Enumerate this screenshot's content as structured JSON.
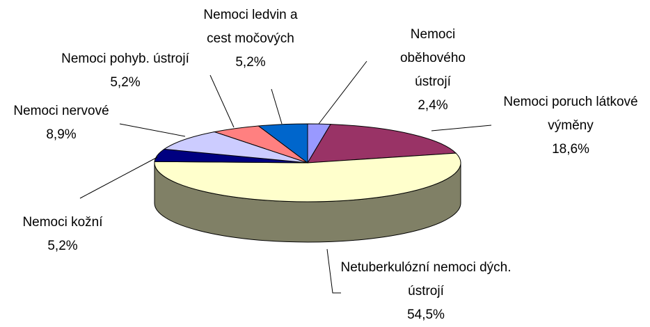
{
  "chart_data": {
    "type": "pie",
    "categories": [
      "Nemoci oběhového ústrojí",
      "Nemoci poruch látkové výměny",
      "Netuberkulózní nemoci dých. ústrojí",
      "Nemoci kožní",
      "Nemoci nervové",
      "Nemoci pohyb. ústrojí",
      "Nemoci ledvin a cest močových"
    ],
    "values": [
      2.4,
      18.6,
      54.5,
      5.2,
      8.9,
      5.2,
      5.2
    ],
    "value_labels": [
      "2,4%",
      "18,6%",
      "54,5%",
      "5,2%",
      "8,9%",
      "5,2%",
      "5,2%"
    ],
    "colors": [
      "#9999ff",
      "#993366",
      "#ffffcc",
      "#000080",
      "#ccccff",
      "#ff8080",
      "#0066cc"
    ]
  }
}
